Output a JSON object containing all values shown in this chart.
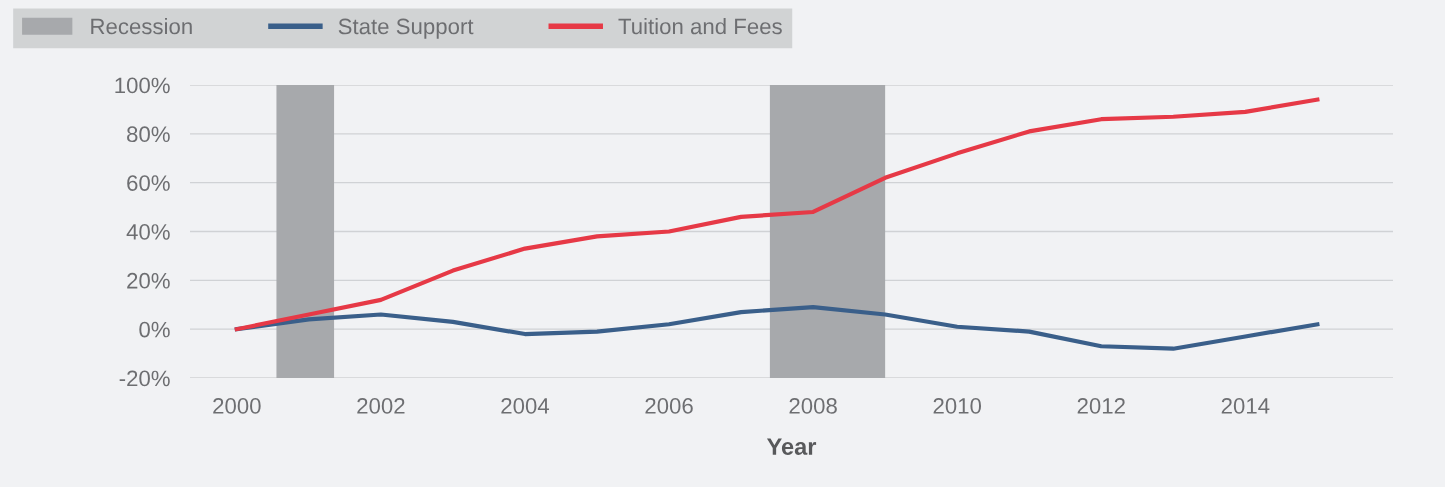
{
  "chart_data": {
    "type": "line",
    "xlabel": "Year",
    "x": [
      2000,
      2001,
      2002,
      2003,
      2004,
      2005,
      2006,
      2007,
      2008,
      2009,
      2010,
      2011,
      2012,
      2013,
      2014,
      2015
    ],
    "series": [
      {
        "name": "State Support",
        "color": "#3a5f8a",
        "values": [
          0,
          4,
          6,
          3,
          -2,
          -1,
          2,
          7,
          9,
          6,
          1,
          -1,
          -7,
          -8,
          -3,
          2
        ]
      },
      {
        "name": "Tuition and Fees",
        "color": "#e63946",
        "values": [
          0,
          6,
          12,
          24,
          33,
          38,
          40,
          46,
          48,
          62,
          72,
          81,
          86,
          87,
          89,
          94
        ]
      }
    ],
    "bands": [
      {
        "axis": "x",
        "from": 2000.55,
        "to": 2001.35,
        "label": "Recession",
        "color": "#a7a9ac"
      },
      {
        "axis": "x",
        "from": 2007.4,
        "to": 2009.0,
        "color": "#a7a9ac"
      }
    ],
    "xlim": [
      1999.35,
      2016.05
    ],
    "ylim": [
      -20,
      100
    ],
    "xticks": [
      2000,
      2002,
      2004,
      2006,
      2008,
      2010,
      2012,
      2014
    ],
    "yticks": [
      {
        "value": -20,
        "label": "-20%"
      },
      {
        "value": 0,
        "label": "0%"
      },
      {
        "value": 20,
        "label": "20%"
      },
      {
        "value": 40,
        "label": "40%"
      },
      {
        "value": 60,
        "label": "60%"
      },
      {
        "value": 80,
        "label": "80%"
      },
      {
        "value": 100,
        "label": "100%"
      }
    ],
    "grid": "y",
    "legend": "top left",
    "marker": "none",
    "line_style": "solid"
  }
}
